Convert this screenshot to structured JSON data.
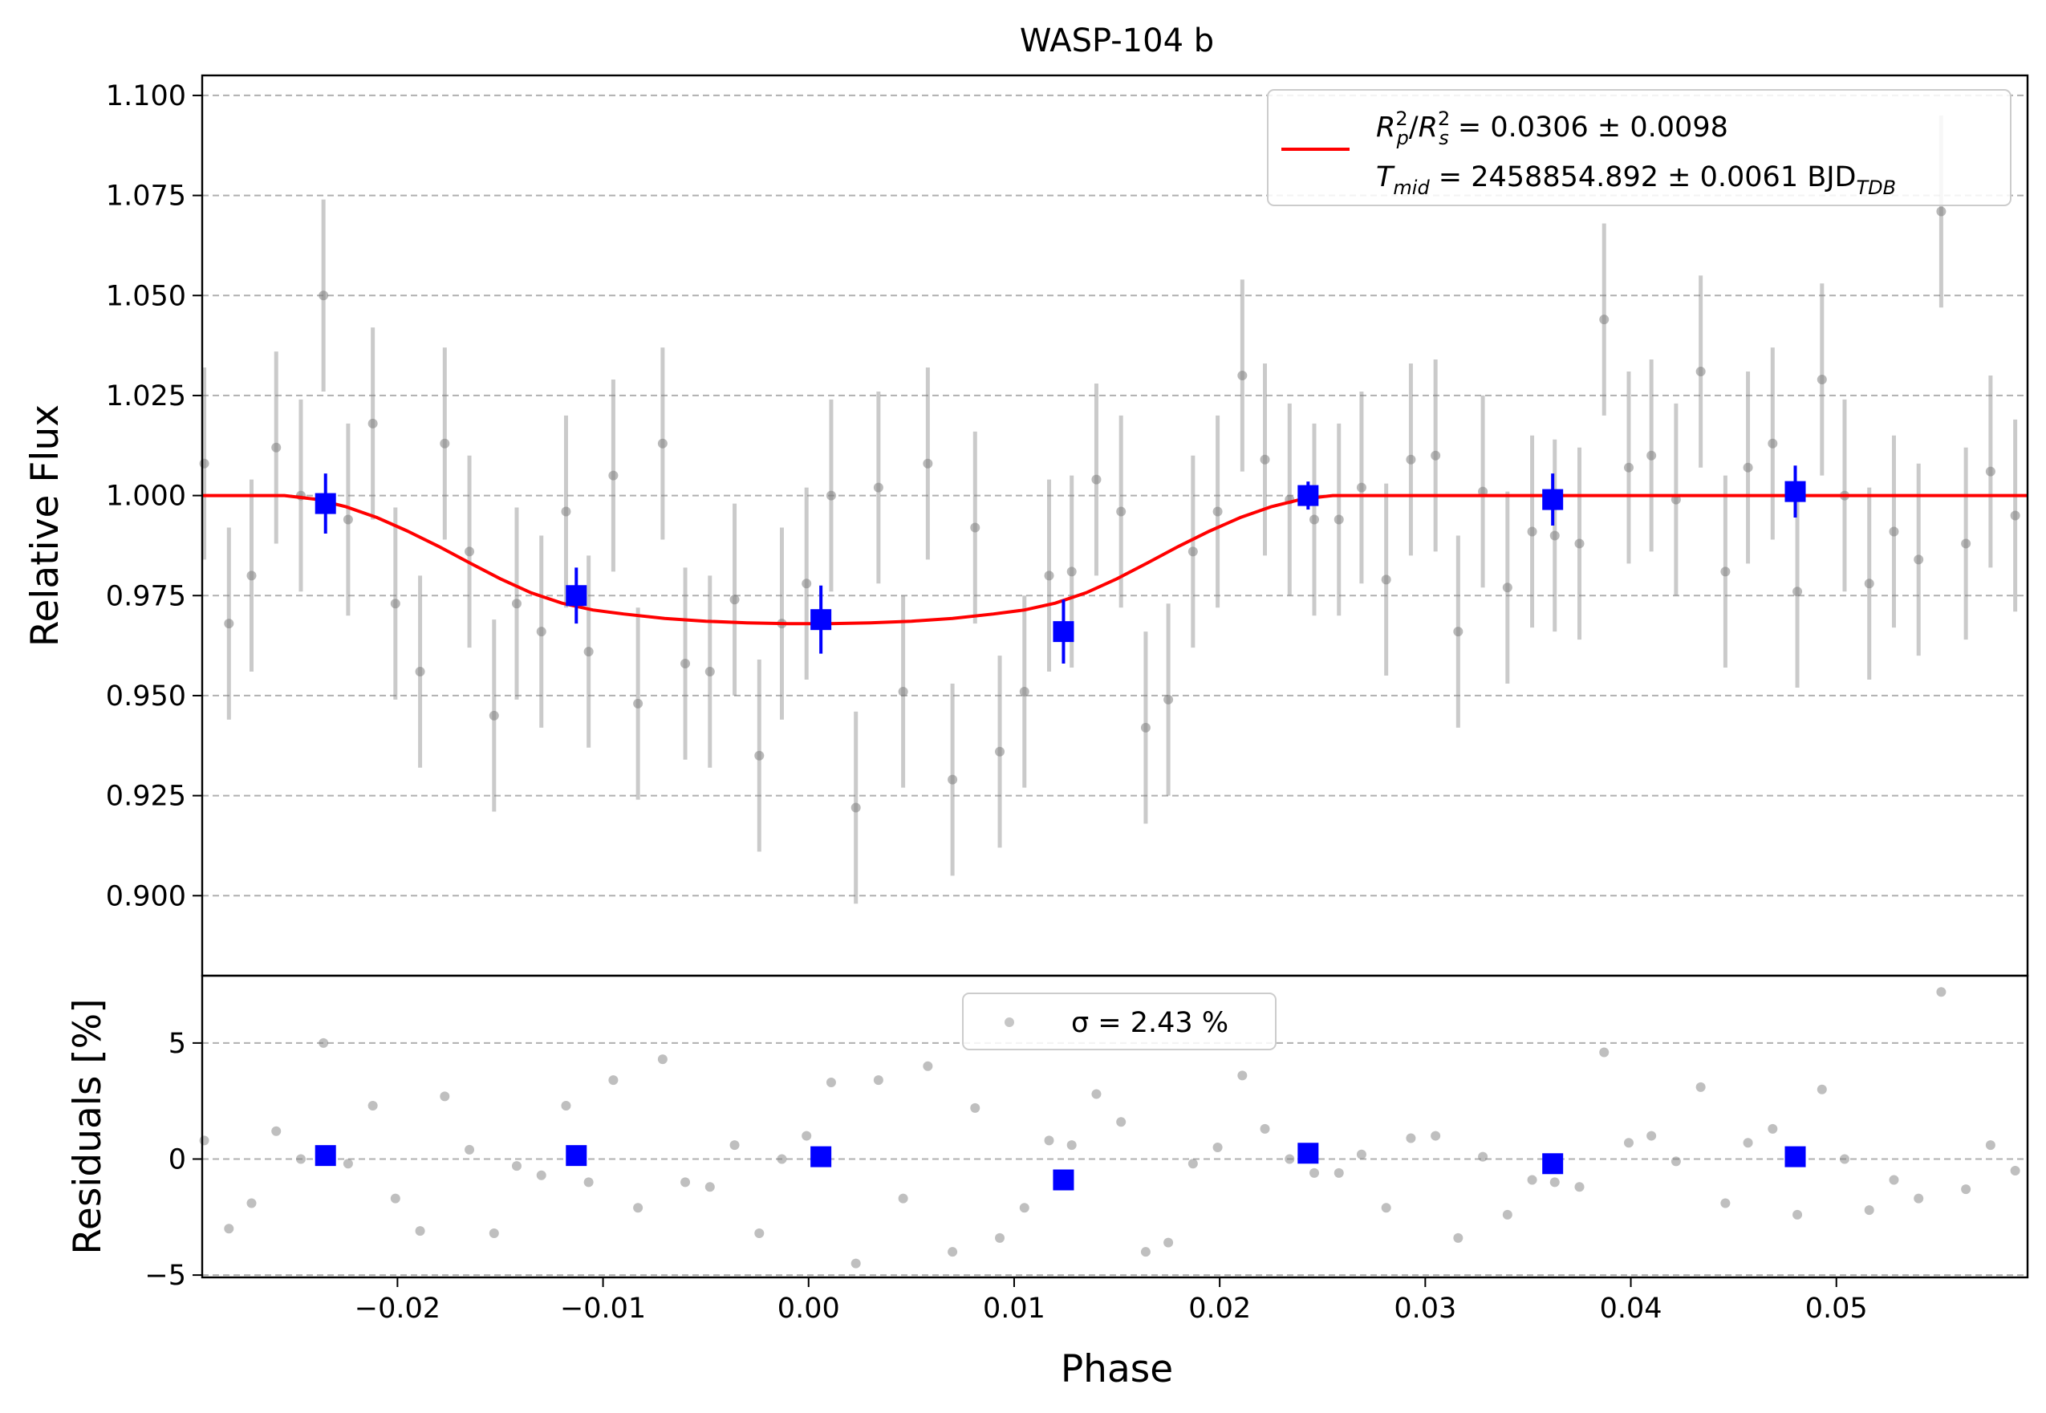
{
  "chart_data": [
    {
      "type": "scatter",
      "panel": "light-curve",
      "title": "WASP-104 b",
      "ylabel": "Relative Flux",
      "xlabel": "",
      "xlim": [
        -0.0295,
        0.0593
      ],
      "ylim": [
        0.88,
        1.105
      ],
      "yticks": [
        0.9,
        0.925,
        0.95,
        0.975,
        1.0,
        1.025,
        1.05,
        1.075,
        1.1
      ],
      "ytick_labels": [
        "0.900",
        "0.925",
        "0.950",
        "0.975",
        "1.000",
        "1.025",
        "1.050",
        "1.075",
        "1.100"
      ],
      "grid": "y-dashed",
      "legend_position": "top-right",
      "legend": [
        {
          "text": "R²p/R²s = 0.0306 ± 0.0098",
          "color": "#ff0000"
        },
        {
          "text": "Tmid = 2458854.892 ± 0.0061 BJDTDB"
        }
      ],
      "colors": {
        "raw": "#808080",
        "binned": "#0000ff",
        "model": "#ff0000"
      },
      "series": [
        {
          "kind": "raw",
          "error": 0.024,
          "x": [
            -0.0294,
            -0.0282,
            -0.0271,
            -0.0259,
            -0.0247,
            -0.0236,
            -0.0224,
            -0.0212,
            -0.0201,
            -0.0189,
            -0.0177,
            -0.0165,
            -0.0153,
            -0.0142,
            -0.013,
            -0.0118,
            -0.0107,
            -0.0095,
            -0.0083,
            -0.0071,
            -0.006,
            -0.0048,
            -0.0036,
            -0.0024,
            -0.0013,
            -0.0001,
            0.0011,
            0.0023,
            0.0034,
            0.0046,
            0.0058,
            0.007,
            0.0081,
            0.0093,
            0.0105,
            0.0117,
            0.0128,
            0.014,
            0.0152,
            0.0164,
            0.0175,
            0.0187,
            0.0199,
            0.0211,
            0.0222,
            0.0234,
            0.0246,
            0.0258,
            0.0269,
            0.0281,
            0.0293,
            0.0305,
            0.0316,
            0.0328,
            0.034,
            0.0352,
            0.0363,
            0.0375,
            0.0387,
            0.0399,
            0.041,
            0.0422,
            0.0434,
            0.0446,
            0.0457,
            0.0469,
            0.0481,
            0.0493,
            0.0504,
            0.0516,
            0.0528,
            0.054,
            0.0551,
            0.0563,
            0.0575,
            0.0587
          ],
          "y": [
            1.008,
            0.968,
            0.98,
            1.012,
            1.0,
            1.05,
            0.994,
            1.018,
            0.973,
            0.956,
            1.013,
            0.986,
            0.945,
            0.973,
            0.966,
            0.996,
            0.961,
            1.005,
            0.948,
            1.013,
            0.958,
            0.956,
            0.974,
            0.935,
            0.968,
            0.978,
            1.0,
            0.922,
            1.002,
            0.951,
            1.008,
            0.929,
            0.992,
            0.936,
            0.951,
            0.98,
            0.981,
            1.004,
            0.996,
            0.942,
            0.949,
            0.986,
            0.996,
            1.03,
            1.009,
            0.999,
            0.994,
            0.994,
            1.002,
            0.979,
            1.009,
            1.01,
            0.966,
            1.001,
            0.977,
            0.991,
            0.99,
            0.988,
            1.044,
            1.007,
            1.01,
            0.999,
            1.031,
            0.981,
            1.007,
            1.013,
            0.976,
            1.029,
            1.0,
            0.978,
            0.991,
            0.984,
            1.071,
            0.988,
            1.006,
            0.995
          ]
        },
        {
          "kind": "binned",
          "x": [
            -0.0235,
            -0.0113,
            0.0006,
            0.0124,
            0.0243,
            0.0362,
            0.048
          ],
          "y": [
            0.998,
            0.975,
            0.969,
            0.966,
            1.0,
            0.999,
            1.001
          ],
          "error": [
            0.0075,
            0.007,
            0.0085,
            0.008,
            0.0035,
            0.0065,
            0.0065
          ]
        },
        {
          "kind": "model",
          "name": "R²p/R²s = 0.0306 ± 0.0098",
          "x": [
            -0.0295,
            -0.0255,
            -0.024,
            -0.0225,
            -0.021,
            -0.0195,
            -0.018,
            -0.0165,
            -0.015,
            -0.0135,
            -0.012,
            -0.0105,
            -0.009,
            -0.007,
            -0.005,
            -0.003,
            -0.001,
            0.001,
            0.003,
            0.005,
            0.007,
            0.009,
            0.0105,
            0.012,
            0.0135,
            0.015,
            0.0165,
            0.018,
            0.0195,
            0.021,
            0.0225,
            0.024,
            0.0255,
            0.0593
          ],
          "y": [
            1.0,
            1.0,
            0.9991,
            0.9972,
            0.9945,
            0.9911,
            0.9873,
            0.9832,
            0.9792,
            0.9757,
            0.9731,
            0.9714,
            0.9704,
            0.9693,
            0.9686,
            0.9682,
            0.968,
            0.968,
            0.9682,
            0.9686,
            0.9693,
            0.9704,
            0.9714,
            0.9731,
            0.9757,
            0.9792,
            0.9832,
            0.9873,
            0.9911,
            0.9945,
            0.9972,
            0.9991,
            1.0,
            1.0
          ]
        }
      ]
    },
    {
      "type": "scatter",
      "panel": "residuals",
      "xlabel": "Phase",
      "ylabel": "Residuals [%]",
      "xlim": [
        -0.0295,
        0.0593
      ],
      "ylim": [
        -5.1,
        7.9
      ],
      "xticks": [
        -0.02,
        -0.01,
        0.0,
        0.01,
        0.02,
        0.03,
        0.04,
        0.05
      ],
      "xtick_labels": [
        "−0.02",
        "−0.01",
        "0.00",
        "0.01",
        "0.02",
        "0.03",
        "0.04",
        "0.05"
      ],
      "yticks": [
        -5,
        0,
        5
      ],
      "ytick_labels": [
        "−5",
        "0",
        "5"
      ],
      "grid": "y-dashed",
      "legend_position": "top-center",
      "legend": [
        {
          "text": "σ = 2.43 %",
          "color": "#808080"
        }
      ],
      "series": [
        {
          "kind": "raw",
          "x": [
            -0.0294,
            -0.0282,
            -0.0271,
            -0.0259,
            -0.0247,
            -0.0236,
            -0.0224,
            -0.0212,
            -0.0201,
            -0.0189,
            -0.0177,
            -0.0165,
            -0.0153,
            -0.0142,
            -0.013,
            -0.0118,
            -0.0107,
            -0.0095,
            -0.0083,
            -0.0071,
            -0.006,
            -0.0048,
            -0.0036,
            -0.0024,
            -0.0013,
            -0.0001,
            0.0011,
            0.0023,
            0.0034,
            0.0046,
            0.0058,
            0.007,
            0.0081,
            0.0093,
            0.0105,
            0.0117,
            0.0128,
            0.014,
            0.0152,
            0.0164,
            0.0175,
            0.0187,
            0.0199,
            0.0211,
            0.0222,
            0.0234,
            0.0246,
            0.0258,
            0.0269,
            0.0281,
            0.0293,
            0.0305,
            0.0316,
            0.0328,
            0.034,
            0.0352,
            0.0363,
            0.0375,
            0.0387,
            0.0399,
            0.041,
            0.0422,
            0.0434,
            0.0446,
            0.0457,
            0.0469,
            0.0481,
            0.0493,
            0.0504,
            0.0516,
            0.0528,
            0.054,
            0.0551,
            0.0563,
            0.0575,
            0.0587
          ],
          "y": [
            0.8,
            -3.0,
            -1.9,
            1.2,
            0.0,
            5.0,
            -0.2,
            2.3,
            -1.7,
            -3.1,
            2.7,
            0.4,
            -3.2,
            -0.3,
            -0.7,
            2.3,
            -1.0,
            3.4,
            -2.1,
            4.3,
            -1.0,
            -1.2,
            0.6,
            -3.2,
            0.0,
            1.0,
            3.3,
            -4.5,
            3.4,
            -1.7,
            4.0,
            -4.0,
            2.2,
            -3.4,
            -2.1,
            0.8,
            0.6,
            2.8,
            1.6,
            -4.0,
            -3.6,
            -0.2,
            0.5,
            3.6,
            1.3,
            0.0,
            -0.6,
            -0.6,
            0.2,
            -2.1,
            0.9,
            1.0,
            -3.4,
            0.1,
            -2.4,
            -0.9,
            -1.0,
            -1.2,
            4.6,
            0.7,
            1.0,
            -0.1,
            3.1,
            -1.9,
            0.7,
            1.3,
            -2.4,
            3.0,
            0.0,
            -2.2,
            -0.9,
            -1.7,
            7.2,
            -1.3,
            0.6,
            -0.5
          ]
        },
        {
          "kind": "binned",
          "x": [
            -0.0235,
            -0.0113,
            0.0006,
            0.0124,
            0.0243,
            0.0362,
            0.048
          ],
          "y": [
            0.15,
            0.15,
            0.1,
            -0.9,
            0.25,
            -0.2,
            0.1
          ]
        }
      ]
    }
  ]
}
